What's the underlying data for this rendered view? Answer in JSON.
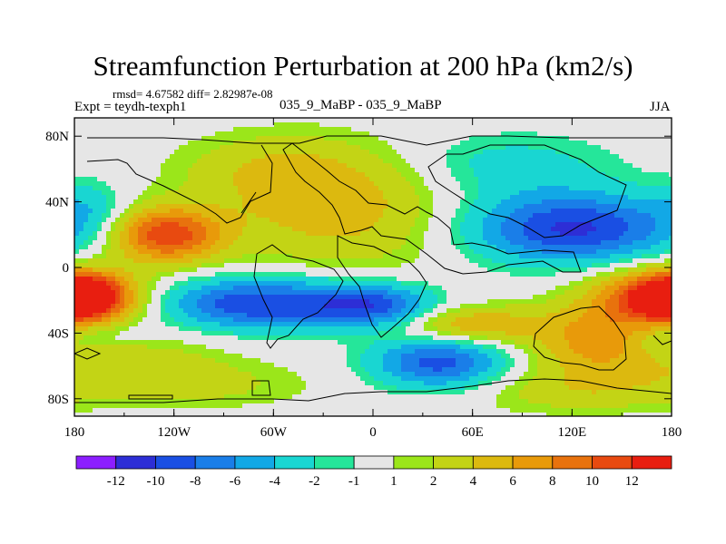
{
  "chart_data": {
    "type": "heatmap",
    "title": "Streamfunction Perturbation at 200 hPa (km2/s)",
    "subtitle": "rmsd= 4.67582 diff= 2.82987e-08",
    "left_label": "Expt = teydh-texph1",
    "center_label": "035_9_MaBP - 035_9_MaBP",
    "right_label": "JJA",
    "xlim": [
      -180,
      180
    ],
    "ylim": [
      -90,
      90
    ],
    "x_ticks": [
      {
        "value": -180,
        "label": "180"
      },
      {
        "value": -120,
        "label": "120W"
      },
      {
        "value": -60,
        "label": "60W"
      },
      {
        "value": 0,
        "label": "0"
      },
      {
        "value": 60,
        "label": "60E"
      },
      {
        "value": 120,
        "label": "120E"
      },
      {
        "value": 180,
        "label": "180"
      }
    ],
    "y_ticks": [
      {
        "value": 80,
        "label": "80N"
      },
      {
        "value": 40,
        "label": "40N"
      },
      {
        "value": 0,
        "label": "0"
      },
      {
        "value": -40,
        "label": "40S"
      },
      {
        "value": -80,
        "label": "80S"
      }
    ],
    "colorbar": {
      "colors": [
        "#8c1eff",
        "#2d2ed6",
        "#1a4fe3",
        "#1a7ee8",
        "#12a8e6",
        "#19d6d2",
        "#25e69a",
        "#e6e6e6",
        "#9be61a",
        "#c3d415",
        "#dcb90f",
        "#e89a0a",
        "#e8720d",
        "#e84a10",
        "#e81e10"
      ],
      "tick_labels": [
        "-12",
        "-10",
        "-8",
        "-6",
        "-4",
        "-2",
        "-1",
        "1",
        "2",
        "4",
        "6",
        "8",
        "10",
        "12"
      ]
    },
    "features": [
      {
        "lon": -125,
        "lat": 20,
        "value": 11.5,
        "slon": 24,
        "slat": 12
      },
      {
        "lon": -175,
        "lat": -18,
        "value": 11,
        "slon": 18,
        "slat": 10
      },
      {
        "lon": 175,
        "lat": -18,
        "value": 11.5,
        "slon": 30,
        "slat": 12
      },
      {
        "lon": -70,
        "lat": -22,
        "value": -10,
        "slon": 40,
        "slat": 11
      },
      {
        "lon": 0,
        "lat": -23,
        "value": -8.5,
        "slon": 26,
        "slat": 9
      },
      {
        "lon": 120,
        "lat": 24,
        "value": -10.5,
        "slon": 45,
        "slat": 15
      },
      {
        "lon": 40,
        "lat": -58,
        "value": -9,
        "slon": 28,
        "slat": 11
      },
      {
        "lon": -20,
        "lat": 35,
        "value": 5,
        "slon": 50,
        "slat": 25
      },
      {
        "lon": 60,
        "lat": -35,
        "value": 6,
        "slon": 30,
        "slat": 8
      },
      {
        "lon": 135,
        "lat": -45,
        "value": 6.5,
        "slon": 28,
        "slat": 15
      },
      {
        "lon": -150,
        "lat": -58,
        "value": 3,
        "slon": 45,
        "slat": 14
      },
      {
        "lon": -170,
        "lat": 35,
        "value": -2.5,
        "slon": 15,
        "slat": 12
      },
      {
        "lon": -160,
        "lat": -40,
        "value": -2,
        "slon": 20,
        "slat": 6
      },
      {
        "lon": 170,
        "lat": -45,
        "value": -2,
        "slon": 15,
        "slat": 8
      },
      {
        "lon": 80,
        "lat": 62,
        "value": -3,
        "slon": 45,
        "slat": 14
      },
      {
        "lon": -60,
        "lat": 60,
        "value": 3,
        "slon": 40,
        "slat": 15
      },
      {
        "lon": -100,
        "lat": -72,
        "value": 2,
        "slon": 50,
        "slat": 10
      },
      {
        "lon": 120,
        "lat": -75,
        "value": 3,
        "slon": 45,
        "slat": 10
      }
    ]
  }
}
